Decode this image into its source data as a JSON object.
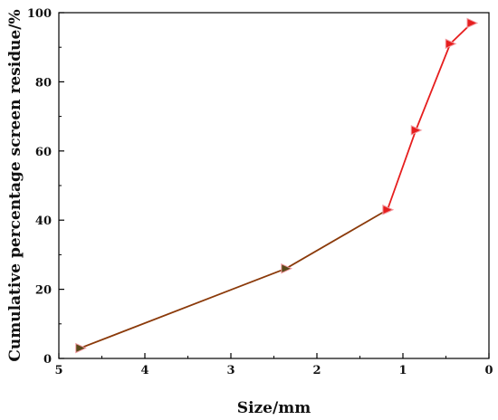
{
  "chart_data": {
    "type": "line",
    "title": "",
    "xlabel": "Size/mm",
    "ylabel": "Cumulative percentage screen residue/%",
    "xlim": [
      5,
      0
    ],
    "ylim": [
      0,
      100
    ],
    "x_reversed": true,
    "x_ticks": [
      5,
      4,
      3,
      2,
      1,
      0
    ],
    "y_ticks": [
      0,
      20,
      40,
      60,
      80,
      100
    ],
    "grid": false,
    "legend": "none",
    "series": [
      {
        "color": "#8B3A0A",
        "marker": "triangle-right",
        "marker_color": "#5a4a1a",
        "x": [
          4.75,
          2.36,
          1.18
        ],
        "y": [
          3,
          26,
          43
        ]
      },
      {
        "color": "#e61e1e",
        "marker": "triangle-right",
        "marker_color": "#e61e1e",
        "x": [
          1.18,
          0.85,
          0.45,
          0.2
        ],
        "y": [
          43,
          66,
          91,
          97
        ]
      }
    ]
  }
}
